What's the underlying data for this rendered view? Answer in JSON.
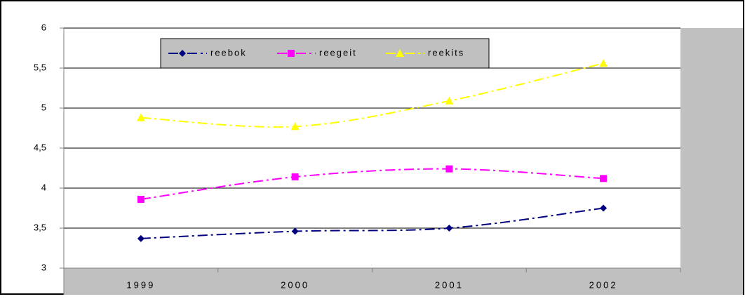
{
  "chart_data": {
    "type": "line",
    "categories": [
      "1999",
      "2000",
      "2001",
      "2002"
    ],
    "series": [
      {
        "name": "reebok",
        "color": "#000080",
        "marker": "diamond",
        "values": [
          3.37,
          3.46,
          3.5,
          3.75
        ]
      },
      {
        "name": "reegeit",
        "color": "#ff00ff",
        "marker": "square",
        "values": [
          3.86,
          4.14,
          4.24,
          4.12
        ]
      },
      {
        "name": "reekits",
        "color": "#ffff00",
        "marker": "triangle",
        "values": [
          4.88,
          4.77,
          5.09,
          5.56
        ]
      }
    ],
    "ylim": [
      3,
      6
    ],
    "yticks": [
      3,
      {
        "value": 3.5,
        "label": "3,5"
      },
      4,
      {
        "value": 4.5,
        "label": "4,5"
      },
      5,
      {
        "value": 5.5,
        "label": "5,5"
      },
      6
    ],
    "grid": true,
    "legend": "top"
  }
}
